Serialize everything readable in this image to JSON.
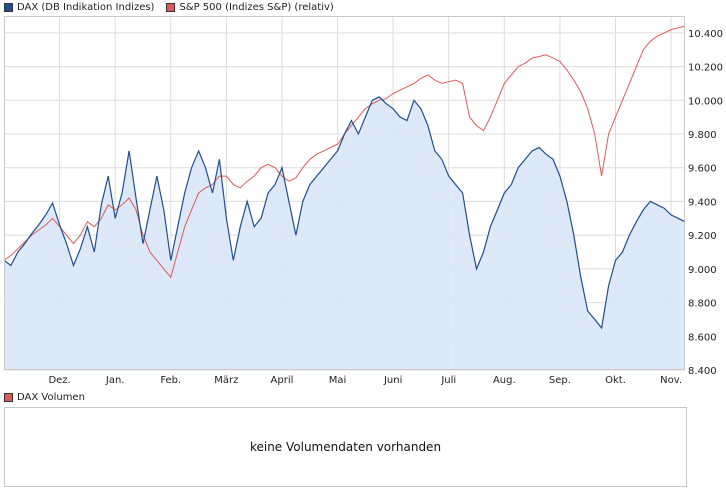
{
  "legend": {
    "dax_label": "DAX (DB Indikation Indizes)",
    "sp_label": "S&P 500 (Indizes S&P) (relativ)",
    "volume_label": "DAX Volumen"
  },
  "volume": {
    "message": "keine Volumendaten vorhanden"
  },
  "colors": {
    "dax_line": "#1f4f8f",
    "dax_fill": "#d9e5f7",
    "sp_line": "#e05a5a",
    "grid": "#dcdcdc",
    "frame": "#c9c9c9"
  },
  "chart_data": {
    "type": "line",
    "title": "",
    "xlabel": "",
    "ylabel": "",
    "ylim": [
      8400,
      10500
    ],
    "y_ticks": [
      8400,
      8600,
      8800,
      9000,
      9200,
      9400,
      9600,
      9800,
      10000,
      10200,
      10400
    ],
    "y_tick_labels": [
      "8.400",
      "8.600",
      "8.800",
      "9.000",
      "9.200",
      "9.400",
      "9.600",
      "9.800",
      "10.000",
      "10.200",
      "10.400"
    ],
    "x_range": [
      0,
      49
    ],
    "x_ticks": [
      {
        "x": 4,
        "label": "Dez."
      },
      {
        "x": 8,
        "label": "Jan."
      },
      {
        "x": 12,
        "label": "Feb."
      },
      {
        "x": 16,
        "label": "März"
      },
      {
        "x": 20,
        "label": "April"
      },
      {
        "x": 24,
        "label": "Mai"
      },
      {
        "x": 28,
        "label": "Juni"
      },
      {
        "x": 32,
        "label": "Juli"
      },
      {
        "x": 36,
        "label": "Aug."
      },
      {
        "x": 40,
        "label": "Sep."
      },
      {
        "x": 44,
        "label": "Okt."
      },
      {
        "x": 48,
        "label": "Nov."
      }
    ],
    "series": [
      {
        "name": "DAX (DB Indikation Indizes)",
        "x": [
          0,
          0.5,
          1,
          1.5,
          2,
          2.5,
          3,
          3.5,
          4,
          4.5,
          5,
          5.5,
          6,
          6.5,
          7,
          7.5,
          8,
          8.5,
          9,
          9.5,
          10,
          10.5,
          11,
          11.5,
          12,
          12.5,
          13,
          13.5,
          14,
          14.5,
          15,
          15.5,
          16,
          16.5,
          17,
          17.5,
          18,
          18.5,
          19,
          19.5,
          20,
          20.5,
          21,
          21.5,
          22,
          22.5,
          23,
          23.5,
          24,
          24.5,
          25,
          25.5,
          26,
          26.5,
          27,
          27.5,
          28,
          28.5,
          29,
          29.5,
          30,
          30.5,
          31,
          31.5,
          32,
          32.5,
          33,
          33.5,
          34,
          34.5,
          35,
          35.5,
          36,
          36.5,
          37,
          37.5,
          38,
          38.5,
          39,
          39.5,
          40,
          40.5,
          41,
          41.5,
          42,
          42.5,
          43,
          43.5,
          44,
          44.5,
          45,
          45.5,
          46,
          46.5,
          47,
          47.5,
          48,
          48.5,
          49
        ],
        "values": [
          9050,
          9020,
          9100,
          9150,
          9210,
          9260,
          9320,
          9390,
          9260,
          9150,
          9020,
          9120,
          9250,
          9100,
          9380,
          9550,
          9300,
          9450,
          9700,
          9420,
          9150,
          9350,
          9550,
          9350,
          9050,
          9250,
          9450,
          9600,
          9700,
          9600,
          9450,
          9650,
          9300,
          9050,
          9250,
          9400,
          9250,
          9300,
          9450,
          9500,
          9600,
          9400,
          9200,
          9400,
          9500,
          9550,
          9600,
          9650,
          9700,
          9800,
          9880,
          9800,
          9900,
          10000,
          10020,
          9980,
          9950,
          9900,
          9880,
          10000,
          9950,
          9850,
          9700,
          9650,
          9550,
          9500,
          9450,
          9200,
          9000,
          9100,
          9250,
          9350,
          9450,
          9500,
          9600,
          9650,
          9700,
          9720,
          9680,
          9650,
          9550,
          9400,
          9200,
          8950,
          8750,
          8700,
          8650,
          8900,
          9050,
          9100,
          9200,
          9280,
          9350,
          9400,
          9380,
          9360,
          9320,
          9300,
          9280
        ]
      },
      {
        "name": "S&P 500 (Indizes S&P) (relativ)",
        "x": [
          0,
          0.5,
          1,
          1.5,
          2,
          2.5,
          3,
          3.5,
          4,
          4.5,
          5,
          5.5,
          6,
          6.5,
          7,
          7.5,
          8,
          8.5,
          9,
          9.5,
          10,
          10.5,
          11,
          11.5,
          12,
          12.5,
          13,
          13.5,
          14,
          14.5,
          15,
          15.5,
          16,
          16.5,
          17,
          17.5,
          18,
          18.5,
          19,
          19.5,
          20,
          20.5,
          21,
          21.5,
          22,
          22.5,
          23,
          23.5,
          24,
          24.5,
          25,
          25.5,
          26,
          26.5,
          27,
          27.5,
          28,
          28.5,
          29,
          29.5,
          30,
          30.5,
          31,
          31.5,
          32,
          32.5,
          33,
          33.5,
          34,
          34.5,
          35,
          35.5,
          36,
          36.5,
          37,
          37.5,
          38,
          38.5,
          39,
          39.5,
          40,
          40.5,
          41,
          41.5,
          42,
          42.5,
          43,
          43.5,
          44,
          44.5,
          45,
          45.5,
          46,
          46.5,
          47,
          47.5,
          48,
          48.5,
          49
        ],
        "values": [
          9050,
          9080,
          9120,
          9160,
          9200,
          9230,
          9260,
          9300,
          9250,
          9200,
          9150,
          9200,
          9280,
          9250,
          9300,
          9380,
          9350,
          9380,
          9420,
          9350,
          9200,
          9100,
          9050,
          9000,
          8950,
          9100,
          9250,
          9350,
          9450,
          9480,
          9500,
          9550,
          9550,
          9500,
          9480,
          9520,
          9550,
          9600,
          9620,
          9600,
          9550,
          9520,
          9540,
          9600,
          9650,
          9680,
          9700,
          9720,
          9740,
          9800,
          9850,
          9900,
          9950,
          9980,
          10000,
          10010,
          10040,
          10060,
          10080,
          10100,
          10130,
          10150,
          10120,
          10100,
          10110,
          10120,
          10100,
          9900,
          9850,
          9820,
          9900,
          10000,
          10100,
          10150,
          10200,
          10220,
          10250,
          10260,
          10270,
          10250,
          10230,
          10180,
          10120,
          10050,
          9950,
          9800,
          9550,
          9800,
          9900,
          10000,
          10100,
          10200,
          10300,
          10350,
          10380,
          10400,
          10420,
          10430,
          10440
        ]
      }
    ]
  }
}
